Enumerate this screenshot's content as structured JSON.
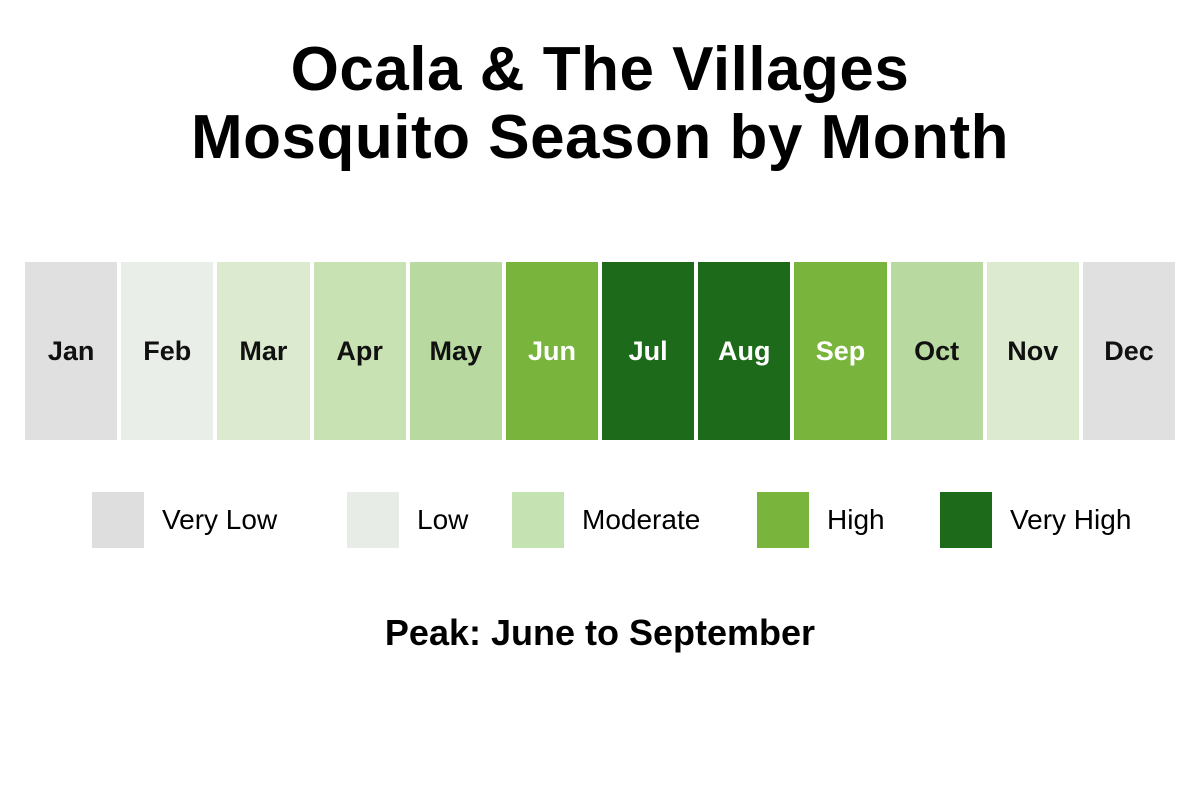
{
  "chart_data": {
    "type": "heatmap",
    "title_lines": [
      "Ocala & The Villages",
      "Mosquito Season by Month"
    ],
    "categories": [
      "Jan",
      "Feb",
      "Mar",
      "Apr",
      "May",
      "Jun",
      "Jul",
      "Aug",
      "Sep",
      "Oct",
      "Nov",
      "Dec"
    ],
    "levels": [
      "Very Low",
      "Low",
      "Low-Moderate",
      "Moderate",
      "Moderate",
      "High",
      "Very High",
      "Very High",
      "High",
      "Moderate",
      "Low-Moderate",
      "Very Low"
    ],
    "colors": [
      "#e0e0e0",
      "#eaeee8",
      "#dcebd0",
      "#c8e2b4",
      "#b8d9a0",
      "#79b43d",
      "#1d6b1a",
      "#1d6b1a",
      "#79b43d",
      "#b8d9a0",
      "#dcebd0",
      "#e0e0e0"
    ],
    "label_colors": [
      "#111111",
      "#111111",
      "#111111",
      "#111111",
      "#111111",
      "#ffffff",
      "#ffffff",
      "#ffffff",
      "#ffffff",
      "#111111",
      "#111111",
      "#111111"
    ],
    "legend": [
      {
        "label": "Very Low",
        "color": "#dedede"
      },
      {
        "label": "Low",
        "color": "#e8ece6"
      },
      {
        "label": "Moderate",
        "color": "#c5e2b2"
      },
      {
        "label": "High",
        "color": "#79b43d"
      },
      {
        "label": "Very High",
        "color": "#1d6b1a"
      }
    ],
    "note": "Peak: June to September"
  }
}
